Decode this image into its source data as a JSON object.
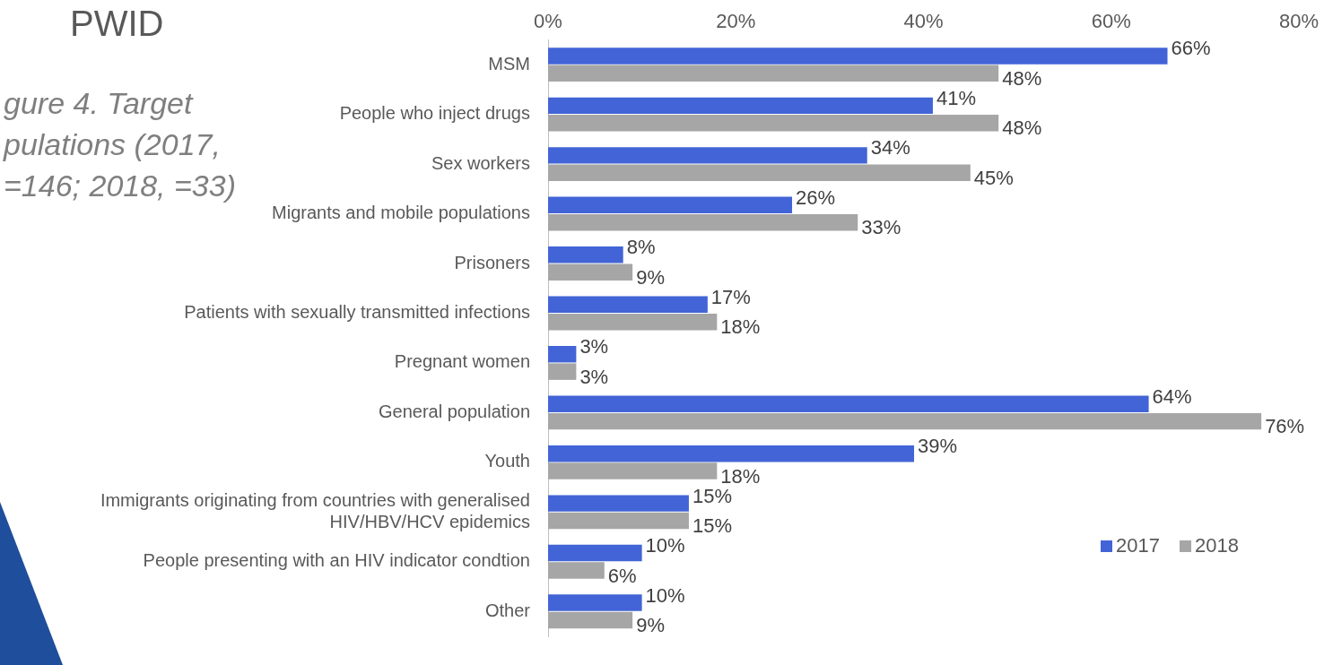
{
  "chart_data": {
    "type": "bar",
    "orientation": "horizontal",
    "title": "gure 4. Target pulations (2017, =146; 2018, =33)",
    "annotations": [
      "PWID"
    ],
    "categories": [
      "MSM",
      "People who inject drugs",
      "Sex workers",
      "Migrants and mobile populations",
      "Prisoners",
      "Patients with sexually transmitted infections",
      "Pregnant women",
      "General population",
      "Youth",
      "Immigrants originating from countries with generalised HIV/HBV/HCV epidemics",
      "People presenting with an HIV indicator condtion",
      "Other"
    ],
    "series": [
      {
        "name": "2017",
        "color": "#4264d6",
        "values": [
          66,
          41,
          34,
          26,
          8,
          17,
          3,
          64,
          39,
          15,
          10,
          10
        ],
        "value_labels": [
          "66%",
          "41%",
          "34%",
          "26%",
          "8%",
          "17%",
          "3%",
          "64%",
          "39%",
          "15%",
          "10%",
          "10%"
        ]
      },
      {
        "name": "2018",
        "color": "#a6a6a6",
        "values": [
          48,
          48,
          45,
          33,
          9,
          18,
          3,
          76,
          18,
          15,
          6,
          9
        ],
        "value_labels": [
          "48%",
          "48%",
          "45%",
          "33%",
          "9%",
          "18%",
          "3%",
          "76%",
          "18%",
          "15%",
          "6%",
          "9%"
        ]
      }
    ],
    "xlim": [
      0,
      80
    ],
    "xticks": [
      {
        "value": 0,
        "label": "0%"
      },
      {
        "value": 20,
        "label": "20%"
      },
      {
        "value": 40,
        "label": "40%"
      },
      {
        "value": 60,
        "label": "60%"
      },
      {
        "value": 80,
        "label": "80%"
      }
    ],
    "legend": "bottom right"
  }
}
